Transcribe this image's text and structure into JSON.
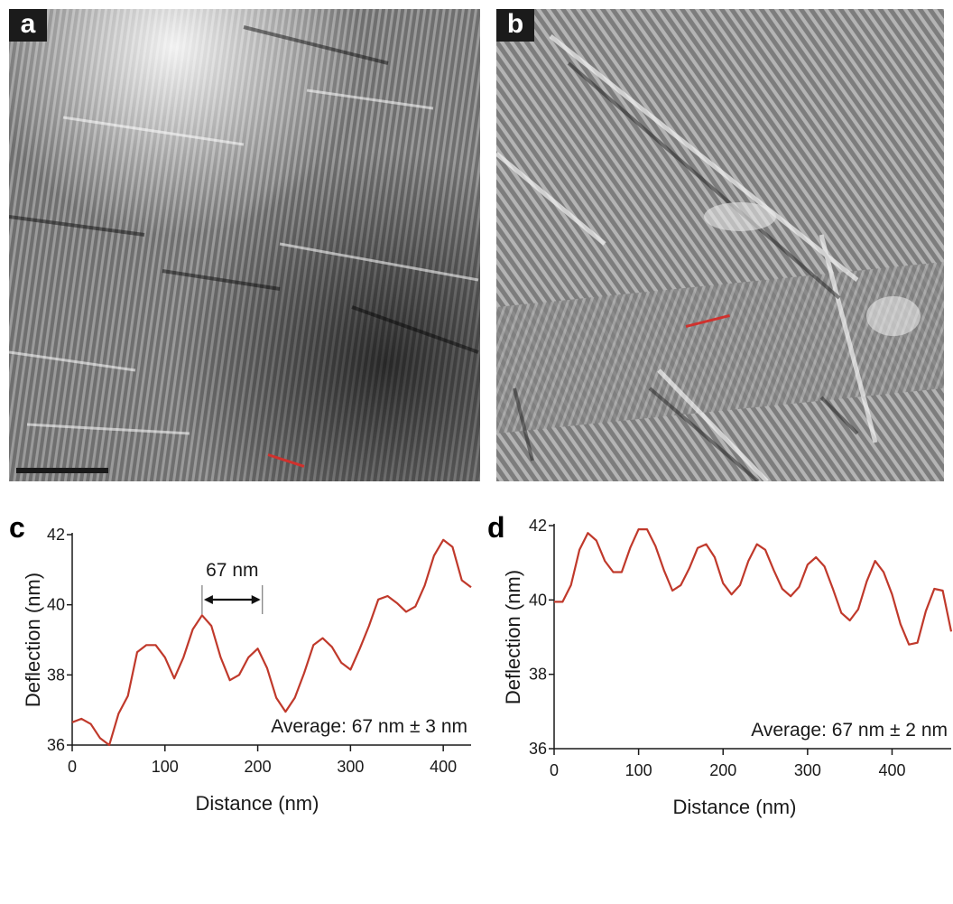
{
  "panels": {
    "a": {
      "label": "a"
    },
    "b": {
      "label": "b"
    },
    "c": {
      "label": "c"
    },
    "d": {
      "label": "d"
    }
  },
  "colors": {
    "profile_line": "#c0392b",
    "scan_marker": "#d0312d",
    "axis": "#1a1a1a"
  },
  "chart_data": [
    {
      "panel": "c",
      "type": "line",
      "xlabel": "Distance (nm)",
      "ylabel": "Deflection (nm)",
      "xlim": [
        0,
        430
      ],
      "ylim": [
        36,
        42
      ],
      "xticks": [
        0,
        100,
        200,
        300,
        400
      ],
      "yticks": [
        36,
        38,
        40,
        42
      ],
      "annotation": "67 nm",
      "annotation_range": [
        140,
        205
      ],
      "average_text": "Average: 67 nm ± 3 nm",
      "x": [
        0,
        10,
        20,
        30,
        40,
        50,
        60,
        70,
        80,
        90,
        100,
        110,
        120,
        130,
        140,
        150,
        160,
        170,
        180,
        190,
        200,
        210,
        220,
        230,
        240,
        250,
        260,
        270,
        280,
        290,
        300,
        310,
        320,
        330,
        340,
        350,
        360,
        370,
        380,
        390,
        400,
        410,
        420,
        430
      ],
      "y": [
        36.65,
        36.75,
        36.6,
        36.2,
        36.0,
        36.9,
        37.4,
        38.65,
        38.85,
        38.85,
        38.5,
        37.9,
        38.5,
        39.3,
        39.7,
        39.4,
        38.5,
        37.85,
        38.0,
        38.5,
        38.75,
        38.2,
        37.35,
        36.95,
        37.35,
        38.05,
        38.85,
        39.05,
        38.8,
        38.35,
        38.15,
        38.75,
        39.4,
        40.15,
        40.25,
        40.05,
        39.8,
        39.95,
        40.55,
        41.4,
        41.85,
        41.65,
        40.7,
        40.5
      ]
    },
    {
      "panel": "d",
      "type": "line",
      "xlabel": "Distance (nm)",
      "ylabel": "Deflection (nm)",
      "xlim": [
        0,
        470
      ],
      "ylim": [
        36,
        42
      ],
      "xticks": [
        0,
        100,
        200,
        300,
        400
      ],
      "yticks": [
        36,
        38,
        40,
        42
      ],
      "average_text": "Average: 67 nm ± 2 nm",
      "x": [
        0,
        10,
        20,
        30,
        40,
        50,
        60,
        70,
        80,
        90,
        100,
        110,
        120,
        130,
        140,
        150,
        160,
        170,
        180,
        190,
        200,
        210,
        220,
        230,
        240,
        250,
        260,
        270,
        280,
        290,
        300,
        310,
        320,
        330,
        340,
        350,
        360,
        370,
        380,
        390,
        400,
        410,
        420,
        430,
        440,
        450,
        460,
        470
      ],
      "y": [
        39.95,
        39.95,
        40.4,
        41.35,
        41.8,
        41.6,
        41.05,
        40.75,
        40.75,
        41.4,
        41.9,
        41.9,
        41.45,
        40.8,
        40.25,
        40.4,
        40.85,
        41.4,
        41.5,
        41.15,
        40.45,
        40.15,
        40.4,
        41.05,
        41.5,
        41.35,
        40.8,
        40.3,
        40.1,
        40.35,
        40.95,
        41.15,
        40.9,
        40.3,
        39.65,
        39.45,
        39.75,
        40.5,
        41.05,
        40.75,
        40.15,
        39.35,
        38.8,
        38.85,
        39.7,
        40.3,
        40.25,
        39.15
      ]
    }
  ]
}
